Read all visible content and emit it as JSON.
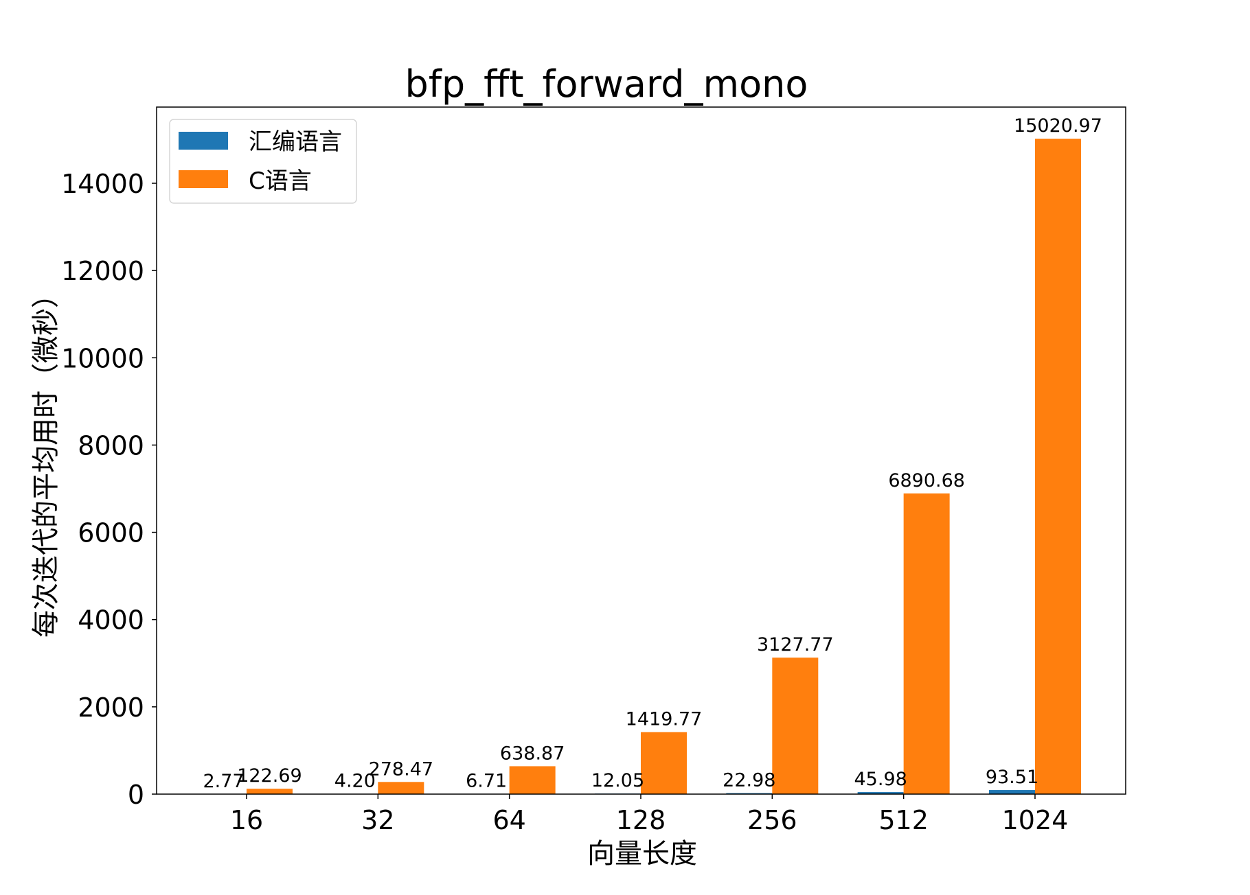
{
  "chart_data": {
    "type": "bar",
    "title": "bfp_fft_forward_mono",
    "xlabel": "向量长度",
    "ylabel": "每次迭代的平均用时（微秒）",
    "categories": [
      "16",
      "32",
      "64",
      "128",
      "256",
      "512",
      "1024"
    ],
    "series": [
      {
        "name": "汇编语言",
        "color": "#1f77b4",
        "values": [
          2.77,
          4.2,
          6.71,
          12.05,
          22.98,
          45.98,
          93.51
        ],
        "labels": [
          "2.77",
          "4.20",
          "6.71",
          "12.05",
          "22.98",
          "45.98",
          "93.51"
        ]
      },
      {
        "name": "C语言",
        "color": "#ff7f0e",
        "values": [
          122.69,
          278.47,
          638.87,
          1419.77,
          3127.77,
          6890.68,
          15020.97
        ],
        "labels": [
          "122.69",
          "278.47",
          "638.87",
          "1419.77",
          "3127.77",
          "6890.68",
          "15020.97"
        ]
      }
    ],
    "yticks": [
      0,
      2000,
      4000,
      6000,
      8000,
      10000,
      12000,
      14000
    ],
    "ylim": [
      0,
      15750
    ],
    "grid": false,
    "legend_position": "upper left"
  }
}
